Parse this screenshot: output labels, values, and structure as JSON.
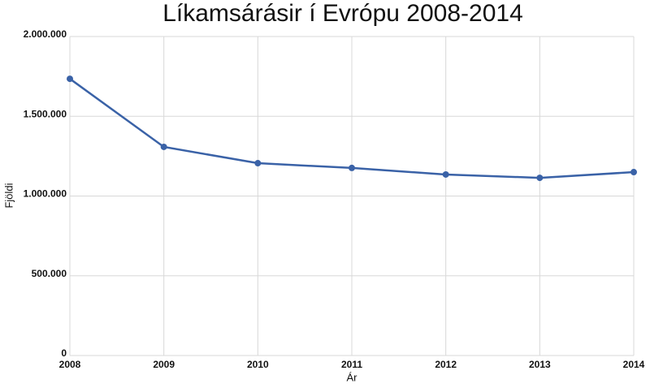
{
  "chart_data": {
    "type": "line",
    "title": "Líkamsárásir í Evrópu 2008-2014",
    "x_label": "Ár",
    "y_label": "Fjöldi",
    "x": [
      2008,
      2009,
      2010,
      2011,
      2012,
      2013,
      2014
    ],
    "series": [
      {
        "color": "#3a62a7",
        "values": [
          1735000,
          1308000,
          1206000,
          1176000,
          1135000,
          1114000,
          1150000
        ]
      }
    ],
    "xlim": [
      2008,
      2014
    ],
    "xticks": [
      2008,
      2009,
      2010,
      2011,
      2012,
      2013,
      2014
    ],
    "ylim": [
      0,
      2000000
    ],
    "yticks": [
      0,
      {
        "value": 500000,
        "label": "500.000"
      },
      {
        "value": 1000000,
        "label": "1.000.000"
      },
      {
        "value": 1500000,
        "label": "1.500.000"
      },
      {
        "value": 2000000,
        "label": "2.000.000"
      }
    ],
    "grid": true
  }
}
